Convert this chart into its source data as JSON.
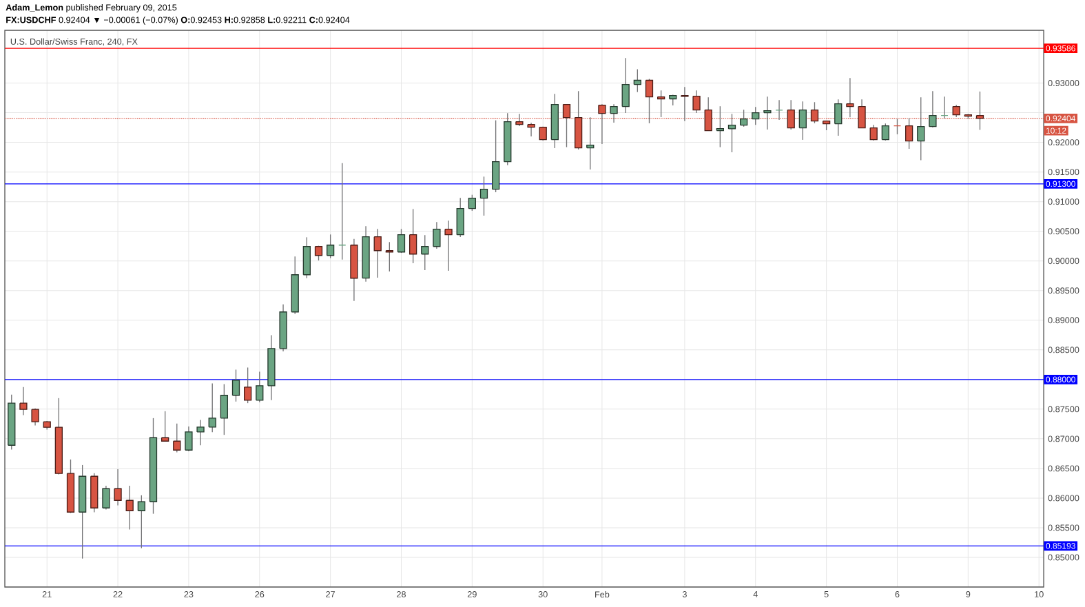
{
  "chart_data": {
    "type": "candlestick",
    "title": "U.S. Dollar/Swiss Franc, 240, FX",
    "subtitle": "**FX:USDCHF** 0.92404 ▼ −0.00061 (−0.07%) **O:**0.92453 **H:**0.92858 **L:**0.92211 **C:**0.92404",
    "annotations": [
      "**Adam_Lemon** published February 09, 2015",
      "10:12"
    ],
    "categories": [
      null,
      null,
      null,
      "21",
      null,
      null,
      null,
      null,
      null,
      "22",
      null,
      null,
      null,
      null,
      null,
      "23",
      null,
      null,
      null,
      null,
      null,
      "26",
      null,
      null,
      null,
      null,
      null,
      "27",
      null,
      null,
      null,
      null,
      null,
      "28",
      null,
      null,
      null,
      null,
      null,
      "29",
      null,
      null,
      null,
      null,
      null,
      "30",
      null,
      null,
      null,
      null,
      "Feb",
      null,
      null,
      null,
      null,
      null,
      null,
      "3",
      null,
      null,
      null,
      null,
      null,
      "4",
      null,
      null,
      null,
      null,
      null,
      "5",
      null,
      null,
      null,
      null,
      null,
      "6",
      null,
      null,
      null,
      null,
      null,
      "9",
      null,
      null,
      null,
      null,
      null,
      "10"
    ],
    "ohlc": [
      [
        0.86891,
        0.87744,
        0.86818,
        0.87601
      ],
      [
        0.87601,
        0.87872,
        0.87399,
        0.87496
      ],
      [
        0.87496,
        0.87512,
        0.87225,
        0.87287
      ],
      [
        0.87287,
        0.87302,
        0.87155,
        0.87194
      ],
      [
        0.87194,
        0.87686,
        0.86399,
        0.86415
      ],
      [
        0.86415,
        0.86651,
        0.85748,
        0.85764
      ],
      [
        0.85764,
        0.86558,
        0.8498,
        0.86368
      ],
      [
        0.86368,
        0.86419,
        0.8576,
        0.85833
      ],
      [
        0.85833,
        0.86209,
        0.85806,
        0.86159
      ],
      [
        0.86159,
        0.86488,
        0.85876,
        0.85961
      ],
      [
        0.85961,
        0.86209,
        0.85469,
        0.85787
      ],
      [
        0.85787,
        0.86047,
        0.85155,
        0.85938
      ],
      [
        0.85938,
        0.87349,
        0.85736,
        0.87019
      ],
      [
        0.87019,
        0.87465,
        0.86961,
        0.86961
      ],
      [
        0.86961,
        0.87256,
        0.86771,
        0.8681
      ],
      [
        0.8681,
        0.87209,
        0.8679,
        0.87116
      ],
      [
        0.87116,
        0.87318,
        0.86891,
        0.87198
      ],
      [
        0.87198,
        0.87934,
        0.87112,
        0.87349
      ],
      [
        0.87349,
        0.87922,
        0.87066,
        0.87733
      ],
      [
        0.87733,
        0.88167,
        0.87628,
        0.87988
      ],
      [
        0.87872,
        0.88202,
        0.87601,
        0.87651
      ],
      [
        0.87651,
        0.88132,
        0.87616,
        0.87895
      ],
      [
        0.87895,
        0.88748,
        0.87651,
        0.88523
      ],
      [
        0.88523,
        0.89267,
        0.88473,
        0.8914
      ],
      [
        0.8914,
        0.90074,
        0.89105,
        0.89767
      ],
      [
        0.89767,
        0.90399,
        0.89709,
        0.90244
      ],
      [
        0.90244,
        0.90256,
        0.90008,
        0.90093
      ],
      [
        0.90093,
        0.90446,
        0.90047,
        0.90267
      ],
      [
        0.90267,
        0.91651,
        0.90023,
        0.90267
      ],
      [
        0.90267,
        0.90372,
        0.89326,
        0.89709
      ],
      [
        0.8971,
        0.90585,
        0.8965,
        0.90407
      ],
      [
        0.90407,
        0.90539,
        0.89717,
        0.90174
      ],
      [
        0.90174,
        0.90318,
        0.89822,
        0.90151
      ],
      [
        0.90151,
        0.90539,
        0.90135,
        0.90442
      ],
      [
        0.90442,
        0.90876,
        0.89961,
        0.90116
      ],
      [
        0.90116,
        0.90434,
        0.89845,
        0.90244
      ],
      [
        0.90244,
        0.90655,
        0.90205,
        0.90535
      ],
      [
        0.90535,
        0.90678,
        0.89833,
        0.90442
      ],
      [
        0.90442,
        0.91062,
        0.90403,
        0.90884
      ],
      [
        0.90884,
        0.91116,
        0.90845,
        0.91058
      ],
      [
        0.91058,
        0.91422,
        0.90764,
        0.91209
      ],
      [
        0.91209,
        0.92372,
        0.91159,
        0.91674
      ],
      [
        0.91674,
        0.92492,
        0.91616,
        0.92349
      ],
      [
        0.92349,
        0.92481,
        0.92275,
        0.92302
      ],
      [
        0.92302,
        0.9233,
        0.92101,
        0.92256
      ],
      [
        0.92256,
        0.92267,
        0.92031,
        0.92047
      ],
      [
        0.92047,
        0.92818,
        0.91903,
        0.9264
      ],
      [
        0.9264,
        0.9264,
        0.91919,
        0.92419
      ],
      [
        0.92419,
        0.92864,
        0.9188,
        0.91907
      ],
      [
        0.91907,
        0.92422,
        0.91543,
        0.91953
      ],
      [
        0.92628,
        0.92643,
        0.91973,
        0.92488
      ],
      [
        0.92488,
        0.92643,
        0.92333,
        0.92605
      ],
      [
        0.92605,
        0.93422,
        0.92496,
        0.92977
      ],
      [
        0.92977,
        0.93233,
        0.92849,
        0.93047
      ],
      [
        0.93047,
        0.9307,
        0.92322,
        0.92767
      ],
      [
        0.92767,
        0.92876,
        0.92426,
        0.92733
      ],
      [
        0.92733,
        0.92802,
        0.92624,
        0.92791
      ],
      [
        0.92791,
        0.92934,
        0.9236,
        0.92775
      ],
      [
        0.92779,
        0.92876,
        0.92496,
        0.92547
      ],
      [
        0.92547,
        0.9276,
        0.92198,
        0.92198
      ],
      [
        0.92198,
        0.92609,
        0.91919,
        0.92233
      ],
      [
        0.92229,
        0.92481,
        0.91833,
        0.92291
      ],
      [
        0.92291,
        0.9255,
        0.92264,
        0.92395
      ],
      [
        0.92395,
        0.92597,
        0.92295,
        0.925
      ],
      [
        0.925,
        0.92771,
        0.92217,
        0.92535
      ],
      [
        0.92543,
        0.92713,
        0.9238,
        0.92543
      ],
      [
        0.92547,
        0.92713,
        0.92217,
        0.92244
      ],
      [
        0.92244,
        0.9269,
        0.92043,
        0.92547
      ],
      [
        0.92547,
        0.92678,
        0.92322,
        0.9236
      ],
      [
        0.9236,
        0.9236,
        0.92205,
        0.92314
      ],
      [
        0.92314,
        0.92725,
        0.92112,
        0.92651
      ],
      [
        0.92651,
        0.93085,
        0.92422,
        0.92605
      ],
      [
        0.92605,
        0.92725,
        0.92244,
        0.92244
      ],
      [
        0.92244,
        0.92295,
        0.92031,
        0.92047
      ],
      [
        0.92047,
        0.92318,
        0.92031,
        0.92279
      ],
      [
        0.92279,
        0.92395,
        0.92136,
        0.92279
      ],
      [
        0.92279,
        0.92411,
        0.91891,
        0.92023
      ],
      [
        0.92023,
        0.9276,
        0.91698,
        0.92267
      ],
      [
        0.92267,
        0.92864,
        0.92252,
        0.92453
      ],
      [
        0.92453,
        0.92771,
        0.92403,
        0.92453
      ],
      [
        0.92605,
        0.92632,
        0.92426,
        0.92465
      ],
      [
        0.92465,
        0.92477,
        0.92395,
        0.92442
      ],
      [
        0.92453,
        0.92858,
        0.92211,
        0.92404
      ],
      null,
      null,
      null,
      null,
      null
    ],
    "colors": [
      "#6ba583",
      "#d75442",
      "#d75442",
      "#d75442",
      "#d75442",
      "#d75442",
      "#6ba583",
      "#d75442",
      "#6ba583",
      "#d75442",
      "#d75442",
      "#6ba583",
      "#6ba583",
      "#d75442",
      "#d75442",
      "#6ba583",
      "#6ba583",
      "#6ba583",
      "#6ba583",
      "#6ba583",
      "#d75442",
      "#6ba583",
      "#6ba583",
      "#6ba583",
      "#6ba583",
      "#6ba583",
      "#d75442",
      "#6ba583",
      "#6ba583",
      "#d75442",
      "#6ba583",
      "#d75442",
      "#d75442",
      "#6ba583",
      "#d75442",
      "#6ba583",
      "#6ba583",
      "#d75442",
      "#6ba583",
      "#6ba583",
      "#6ba583",
      "#6ba583",
      "#6ba583",
      "#d75442",
      "#d75442",
      "#d75442",
      "#6ba583",
      "#d75442",
      "#d75442",
      "#6ba583",
      "#d75442",
      "#6ba583",
      "#6ba583",
      "#6ba583",
      "#d75442",
      "#d75442",
      "#6ba583",
      "#d75442",
      "#d75442",
      "#d75442",
      "#6ba583",
      "#6ba583",
      "#6ba583",
      "#6ba583",
      "#6ba583",
      "#6ba583",
      "#d75442",
      "#6ba583",
      "#d75442",
      "#d75442",
      "#6ba583",
      "#d75442",
      "#d75442",
      "#d75442",
      "#6ba583",
      "#d75442",
      "#d75442",
      "#6ba583",
      "#6ba583",
      "#6ba583",
      "#d75442",
      "#d75442",
      "#d75442",
      null,
      null,
      null,
      null,
      null
    ],
    "ylim": [
      0.845,
      0.9389
    ],
    "yticks": [
      {
        "value": 0.85,
        "label": "0.85000"
      },
      {
        "value": 0.855,
        "label": "0.85500"
      },
      {
        "value": 0.86,
        "label": "0.86000"
      },
      {
        "value": 0.865,
        "label": "0.86500"
      },
      {
        "value": 0.87,
        "label": "0.87000"
      },
      {
        "value": 0.875,
        "label": "0.87500"
      },
      {
        "value": 0.88,
        "label": null
      },
      {
        "value": 0.885,
        "label": "0.88500"
      },
      {
        "value": 0.89,
        "label": "0.89000"
      },
      {
        "value": 0.895,
        "label": "0.89500"
      },
      {
        "value": 0.9,
        "label": "0.90000"
      },
      {
        "value": 0.905,
        "label": "0.90500"
      },
      {
        "value": 0.91,
        "label": "0.91000"
      },
      {
        "value": 0.915,
        "label": "0.91500"
      },
      {
        "value": 0.92,
        "label": "0.92000"
      },
      {
        "value": 0.925,
        "label": null
      },
      {
        "value": 0.93,
        "label": "0.93000"
      }
    ],
    "ref_lines": [
      {
        "axis": "y",
        "value": 0.93586,
        "label": "0.93586",
        "color": "#ff0000",
        "line_style": "solid"
      },
      {
        "axis": "y",
        "value": 0.913,
        "label": "0.91300",
        "color": "#0000ff",
        "line_style": "solid"
      },
      {
        "axis": "y",
        "value": 0.88,
        "label": "0.88000",
        "color": "#0000ff",
        "line_style": "solid"
      },
      {
        "axis": "y",
        "value": 0.85193,
        "label": "0.85193",
        "color": "#0000ff",
        "line_style": "solid"
      },
      {
        "axis": "y",
        "value": 0.92404,
        "label": "0.92404",
        "color": "#d75442",
        "line_style": "dotted"
      }
    ],
    "grid": true
  }
}
